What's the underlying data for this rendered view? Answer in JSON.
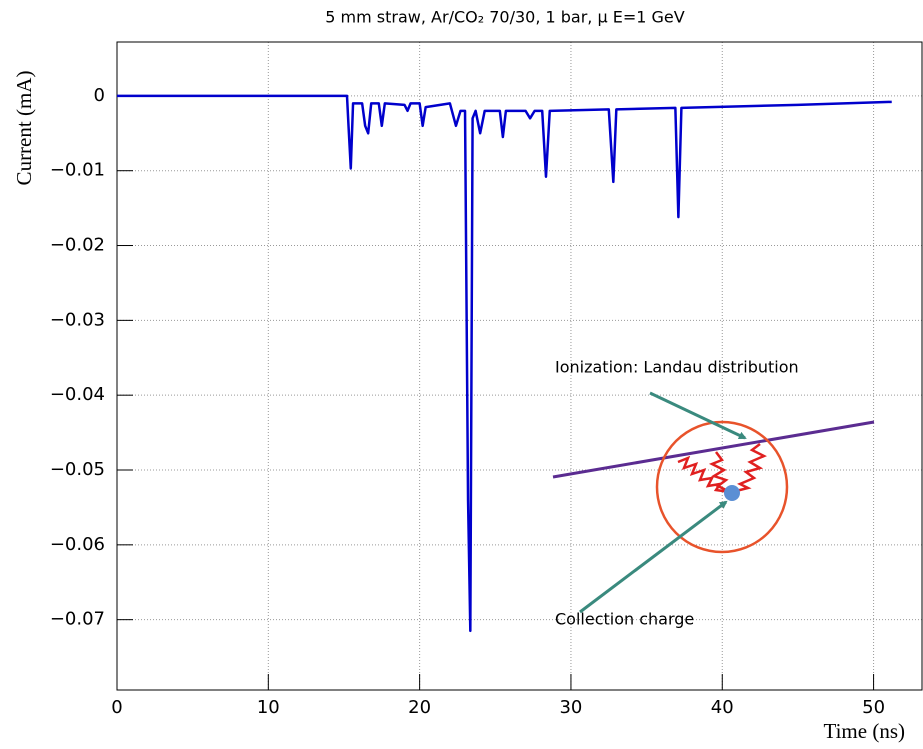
{
  "chart_data": {
    "type": "line",
    "title": "5 mm straw, Ar/CO₂ 70/30, 1 bar, μ E=1 GeV",
    "x_label": "Time (ns)",
    "y_label": "Current (mA)",
    "xlim": [
      0,
      53.2
    ],
    "ylim": [
      -0.0794,
      0.0072
    ],
    "xticks": [
      0,
      10,
      20,
      30,
      40,
      50
    ],
    "yticks": [
      0,
      {
        "value": -0.01,
        "label": "−0.01"
      },
      {
        "value": -0.02,
        "label": "−0.02"
      },
      {
        "value": -0.03,
        "label": "−0.03"
      },
      {
        "value": -0.04,
        "label": "−0.04"
      },
      {
        "value": -0.05,
        "label": "−0.05"
      },
      {
        "value": -0.06,
        "label": "−0.06"
      },
      {
        "value": -0.07,
        "label": "−0.07"
      }
    ],
    "grid": true,
    "series": [
      {
        "color": "#0000cc",
        "x": [
          0,
          15.2,
          15.3,
          15.45,
          15.6,
          16.2,
          16.4,
          16.6,
          16.8,
          17.3,
          17.5,
          17.7,
          19,
          19.2,
          19.4,
          20,
          20.2,
          20.4,
          22,
          22.4,
          22.7,
          23.0,
          23.2,
          23.35,
          23.5,
          23.7,
          24,
          24.3,
          25.3,
          25.5,
          25.7,
          27,
          27.3,
          27.6,
          28.1,
          28.35,
          28.6,
          32.5,
          32.8,
          33.0,
          36.9,
          37.1,
          37.3,
          45,
          51.2
        ],
        "values": [
          0,
          0,
          -0.004,
          -0.0097,
          -0.001,
          -0.001,
          -0.004,
          -0.005,
          -0.001,
          -0.001,
          -0.004,
          -0.001,
          -0.0012,
          -0.002,
          -0.001,
          -0.001,
          -0.004,
          -0.0015,
          -0.001,
          -0.004,
          -0.002,
          -0.002,
          -0.054,
          -0.0715,
          -0.003,
          -0.002,
          -0.005,
          -0.002,
          -0.002,
          -0.0055,
          -0.002,
          -0.002,
          -0.003,
          -0.002,
          -0.002,
          -0.0108,
          -0.002,
          -0.0018,
          -0.0115,
          -0.0018,
          -0.0016,
          -0.0162,
          -0.0016,
          -0.0012,
          -0.0008
        ]
      }
    ],
    "annotations": [
      "Ionization: Landau distribution",
      "Collection charge"
    ]
  }
}
